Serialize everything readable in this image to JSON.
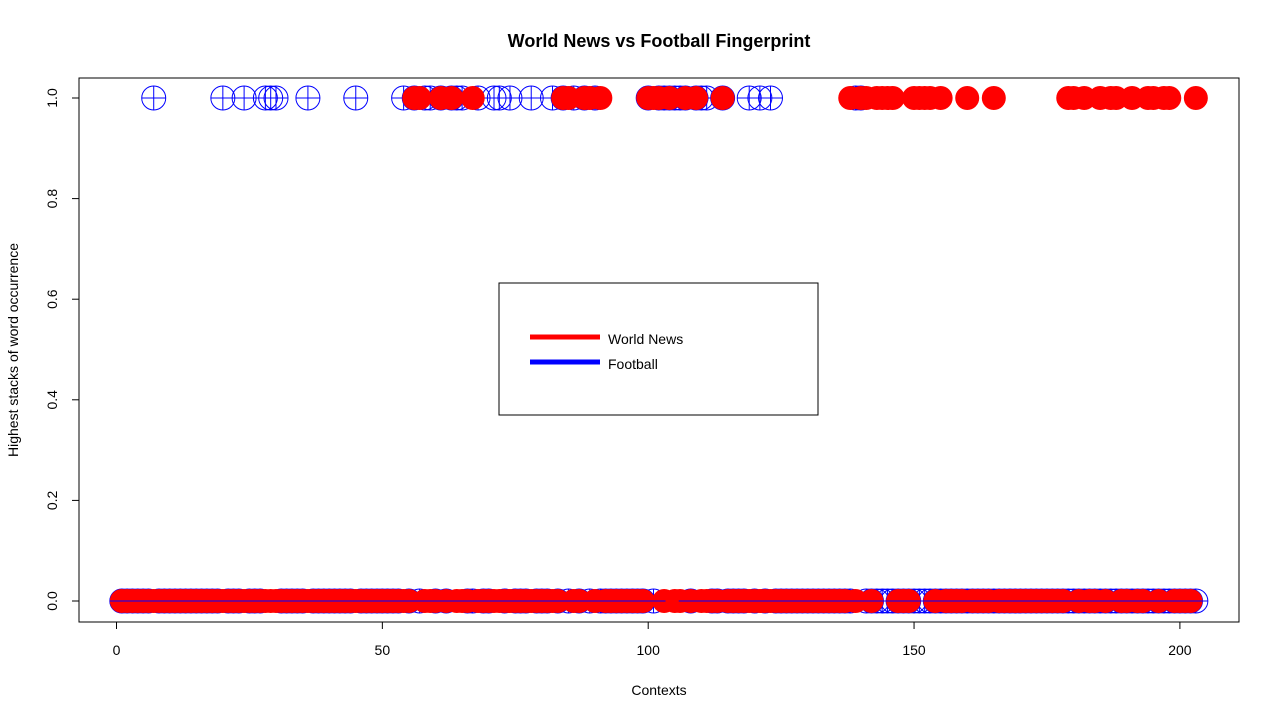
{
  "chart_data": {
    "type": "scatter",
    "title": "World News vs Football Fingerprint",
    "xlabel": "Contexts",
    "ylabel": "Highest stacks of word occurrence",
    "xlim": [
      0,
      203
    ],
    "ylim": [
      0,
      1
    ],
    "xticks": [
      "0",
      "50",
      "100",
      "150",
      "200"
    ],
    "yticks": [
      "0.0",
      "0.2",
      "0.4",
      "0.6",
      "0.8",
      "1.0"
    ],
    "grid": false,
    "legend": {
      "position": "center",
      "entries": [
        "World News",
        "Football"
      ]
    },
    "series": [
      {
        "name": "World News",
        "color": "#ff0000",
        "marker": "filled-circle",
        "x_at_one": [
          56,
          57,
          61,
          63,
          67,
          84,
          85,
          88,
          89,
          91,
          100,
          101,
          102,
          104,
          107,
          109,
          114,
          138,
          140,
          141,
          143,
          144,
          145,
          146,
          150,
          151,
          152,
          153,
          155,
          160,
          165,
          179,
          180,
          182,
          185,
          187,
          188,
          191,
          194,
          195,
          197,
          198,
          203
        ],
        "x_at_zero": [
          1,
          2,
          3,
          4,
          5,
          6,
          7,
          8,
          9,
          10,
          11,
          12,
          13,
          14,
          15,
          16,
          17,
          18,
          19,
          20,
          21,
          22,
          23,
          24,
          25,
          26,
          27,
          28,
          29,
          30,
          31,
          32,
          33,
          34,
          35,
          36,
          37,
          38,
          39,
          40,
          41,
          42,
          43,
          44,
          45,
          46,
          47,
          48,
          49,
          50,
          51,
          52,
          53,
          54,
          55,
          58,
          59,
          60,
          62,
          64,
          65,
          66,
          68,
          69,
          70,
          71,
          72,
          73,
          74,
          75,
          76,
          77,
          78,
          79,
          80,
          81,
          82,
          83,
          86,
          87,
          90,
          92,
          93,
          94,
          95,
          96,
          97,
          98,
          99,
          103,
          105,
          106,
          108,
          110,
          111,
          112,
          113,
          115,
          116,
          117,
          118,
          119,
          120,
          121,
          122,
          123,
          124,
          125,
          126,
          127,
          128,
          129,
          130,
          131,
          132,
          133,
          134,
          135,
          136,
          137,
          139,
          142,
          147,
          148,
          149,
          154,
          156,
          157,
          158,
          159,
          161,
          162,
          163,
          164,
          166,
          167,
          168,
          169,
          170,
          171,
          172,
          173,
          174,
          175,
          176,
          177,
          178,
          181,
          183,
          184,
          186,
          189,
          190,
          192,
          193,
          196,
          199,
          200,
          201,
          202
        ]
      },
      {
        "name": "Football",
        "color": "#0000ff",
        "marker": "open-circle-cross",
        "x_at_one": [
          7,
          20,
          24,
          28,
          29,
          30,
          36,
          45,
          54,
          56,
          58,
          59,
          61,
          63,
          64,
          65,
          68,
          71,
          72,
          74,
          78,
          82,
          84,
          86,
          88,
          90,
          100,
          102,
          103,
          104,
          105,
          106,
          107,
          109,
          110,
          111,
          114,
          119,
          121,
          123,
          139,
          140
        ],
        "x_at_zero": [
          1,
          2,
          3,
          4,
          5,
          6,
          8,
          9,
          10,
          11,
          12,
          13,
          14,
          15,
          16,
          17,
          18,
          19,
          21,
          22,
          23,
          25,
          26,
          27,
          31,
          32,
          33,
          34,
          35,
          37,
          38,
          39,
          40,
          41,
          42,
          43,
          44,
          46,
          47,
          48,
          49,
          50,
          51,
          52,
          53,
          55,
          57,
          60,
          62,
          66,
          67,
          69,
          70,
          73,
          75,
          76,
          77,
          79,
          80,
          81,
          83,
          85,
          87,
          89,
          91,
          92,
          93,
          94,
          95,
          96,
          97,
          98,
          99,
          101,
          108,
          112,
          113,
          115,
          116,
          117,
          118,
          120,
          122,
          124,
          125,
          126,
          127,
          128,
          129,
          130,
          131,
          132,
          133,
          134,
          135,
          136,
          137,
          138,
          141,
          142,
          143,
          144,
          145,
          146,
          147,
          148,
          149,
          150,
          151,
          152,
          153,
          154,
          155,
          156,
          157,
          158,
          159,
          160,
          161,
          162,
          163,
          164,
          165,
          166,
          167,
          168,
          169,
          170,
          171,
          172,
          173,
          174,
          175,
          176,
          177,
          178,
          179,
          180,
          181,
          182,
          183,
          184,
          185,
          186,
          187,
          188,
          189,
          190,
          191,
          192,
          193,
          194,
          195,
          196,
          197,
          198,
          199,
          200,
          201,
          202,
          203
        ]
      }
    ]
  }
}
